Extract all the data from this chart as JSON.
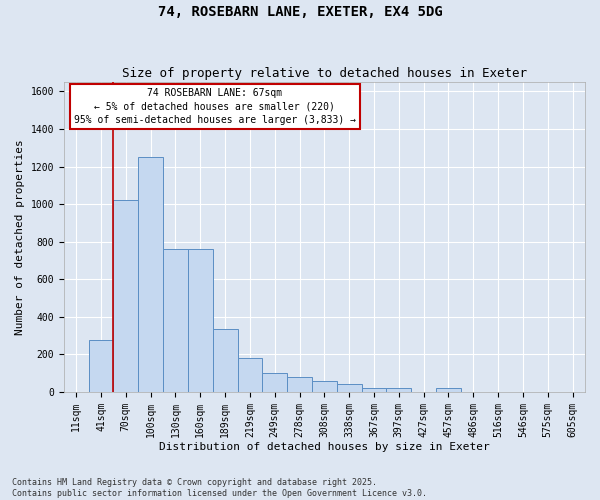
{
  "title1": "74, ROSEBARN LANE, EXETER, EX4 5DG",
  "title2": "Size of property relative to detached houses in Exeter",
  "xlabel": "Distribution of detached houses by size in Exeter",
  "ylabel": "Number of detached properties",
  "bar_labels": [
    "11sqm",
    "41sqm",
    "70sqm",
    "100sqm",
    "130sqm",
    "160sqm",
    "189sqm",
    "219sqm",
    "249sqm",
    "278sqm",
    "308sqm",
    "338sqm",
    "367sqm",
    "397sqm",
    "427sqm",
    "457sqm",
    "486sqm",
    "516sqm",
    "546sqm",
    "575sqm",
    "605sqm"
  ],
  "bar_values": [
    0,
    275,
    1020,
    1250,
    760,
    760,
    335,
    180,
    100,
    80,
    60,
    45,
    20,
    20,
    0,
    20,
    0,
    0,
    0,
    0,
    0
  ],
  "bar_color": "#c5d8f0",
  "bar_edge_color": "#5b8ec4",
  "highlight_color": "#c00000",
  "red_line_x": 1.5,
  "ylim": [
    0,
    1650
  ],
  "yticks": [
    0,
    200,
    400,
    600,
    800,
    1000,
    1200,
    1400,
    1600
  ],
  "annotation_text": "74 ROSEBARN LANE: 67sqm\n← 5% of detached houses are smaller (220)\n95% of semi-detached houses are larger (3,833) →",
  "annotation_box_facecolor": "#ffffff",
  "annotation_box_edgecolor": "#c00000",
  "footnote": "Contains HM Land Registry data © Crown copyright and database right 2025.\nContains public sector information licensed under the Open Government Licence v3.0.",
  "background_color": "#dde6f2",
  "grid_color": "#ffffff",
  "title1_fontsize": 10,
  "title2_fontsize": 9,
  "ylabel_fontsize": 8,
  "xlabel_fontsize": 8,
  "tick_fontsize": 7,
  "annotation_fontsize": 7,
  "footnote_fontsize": 6
}
